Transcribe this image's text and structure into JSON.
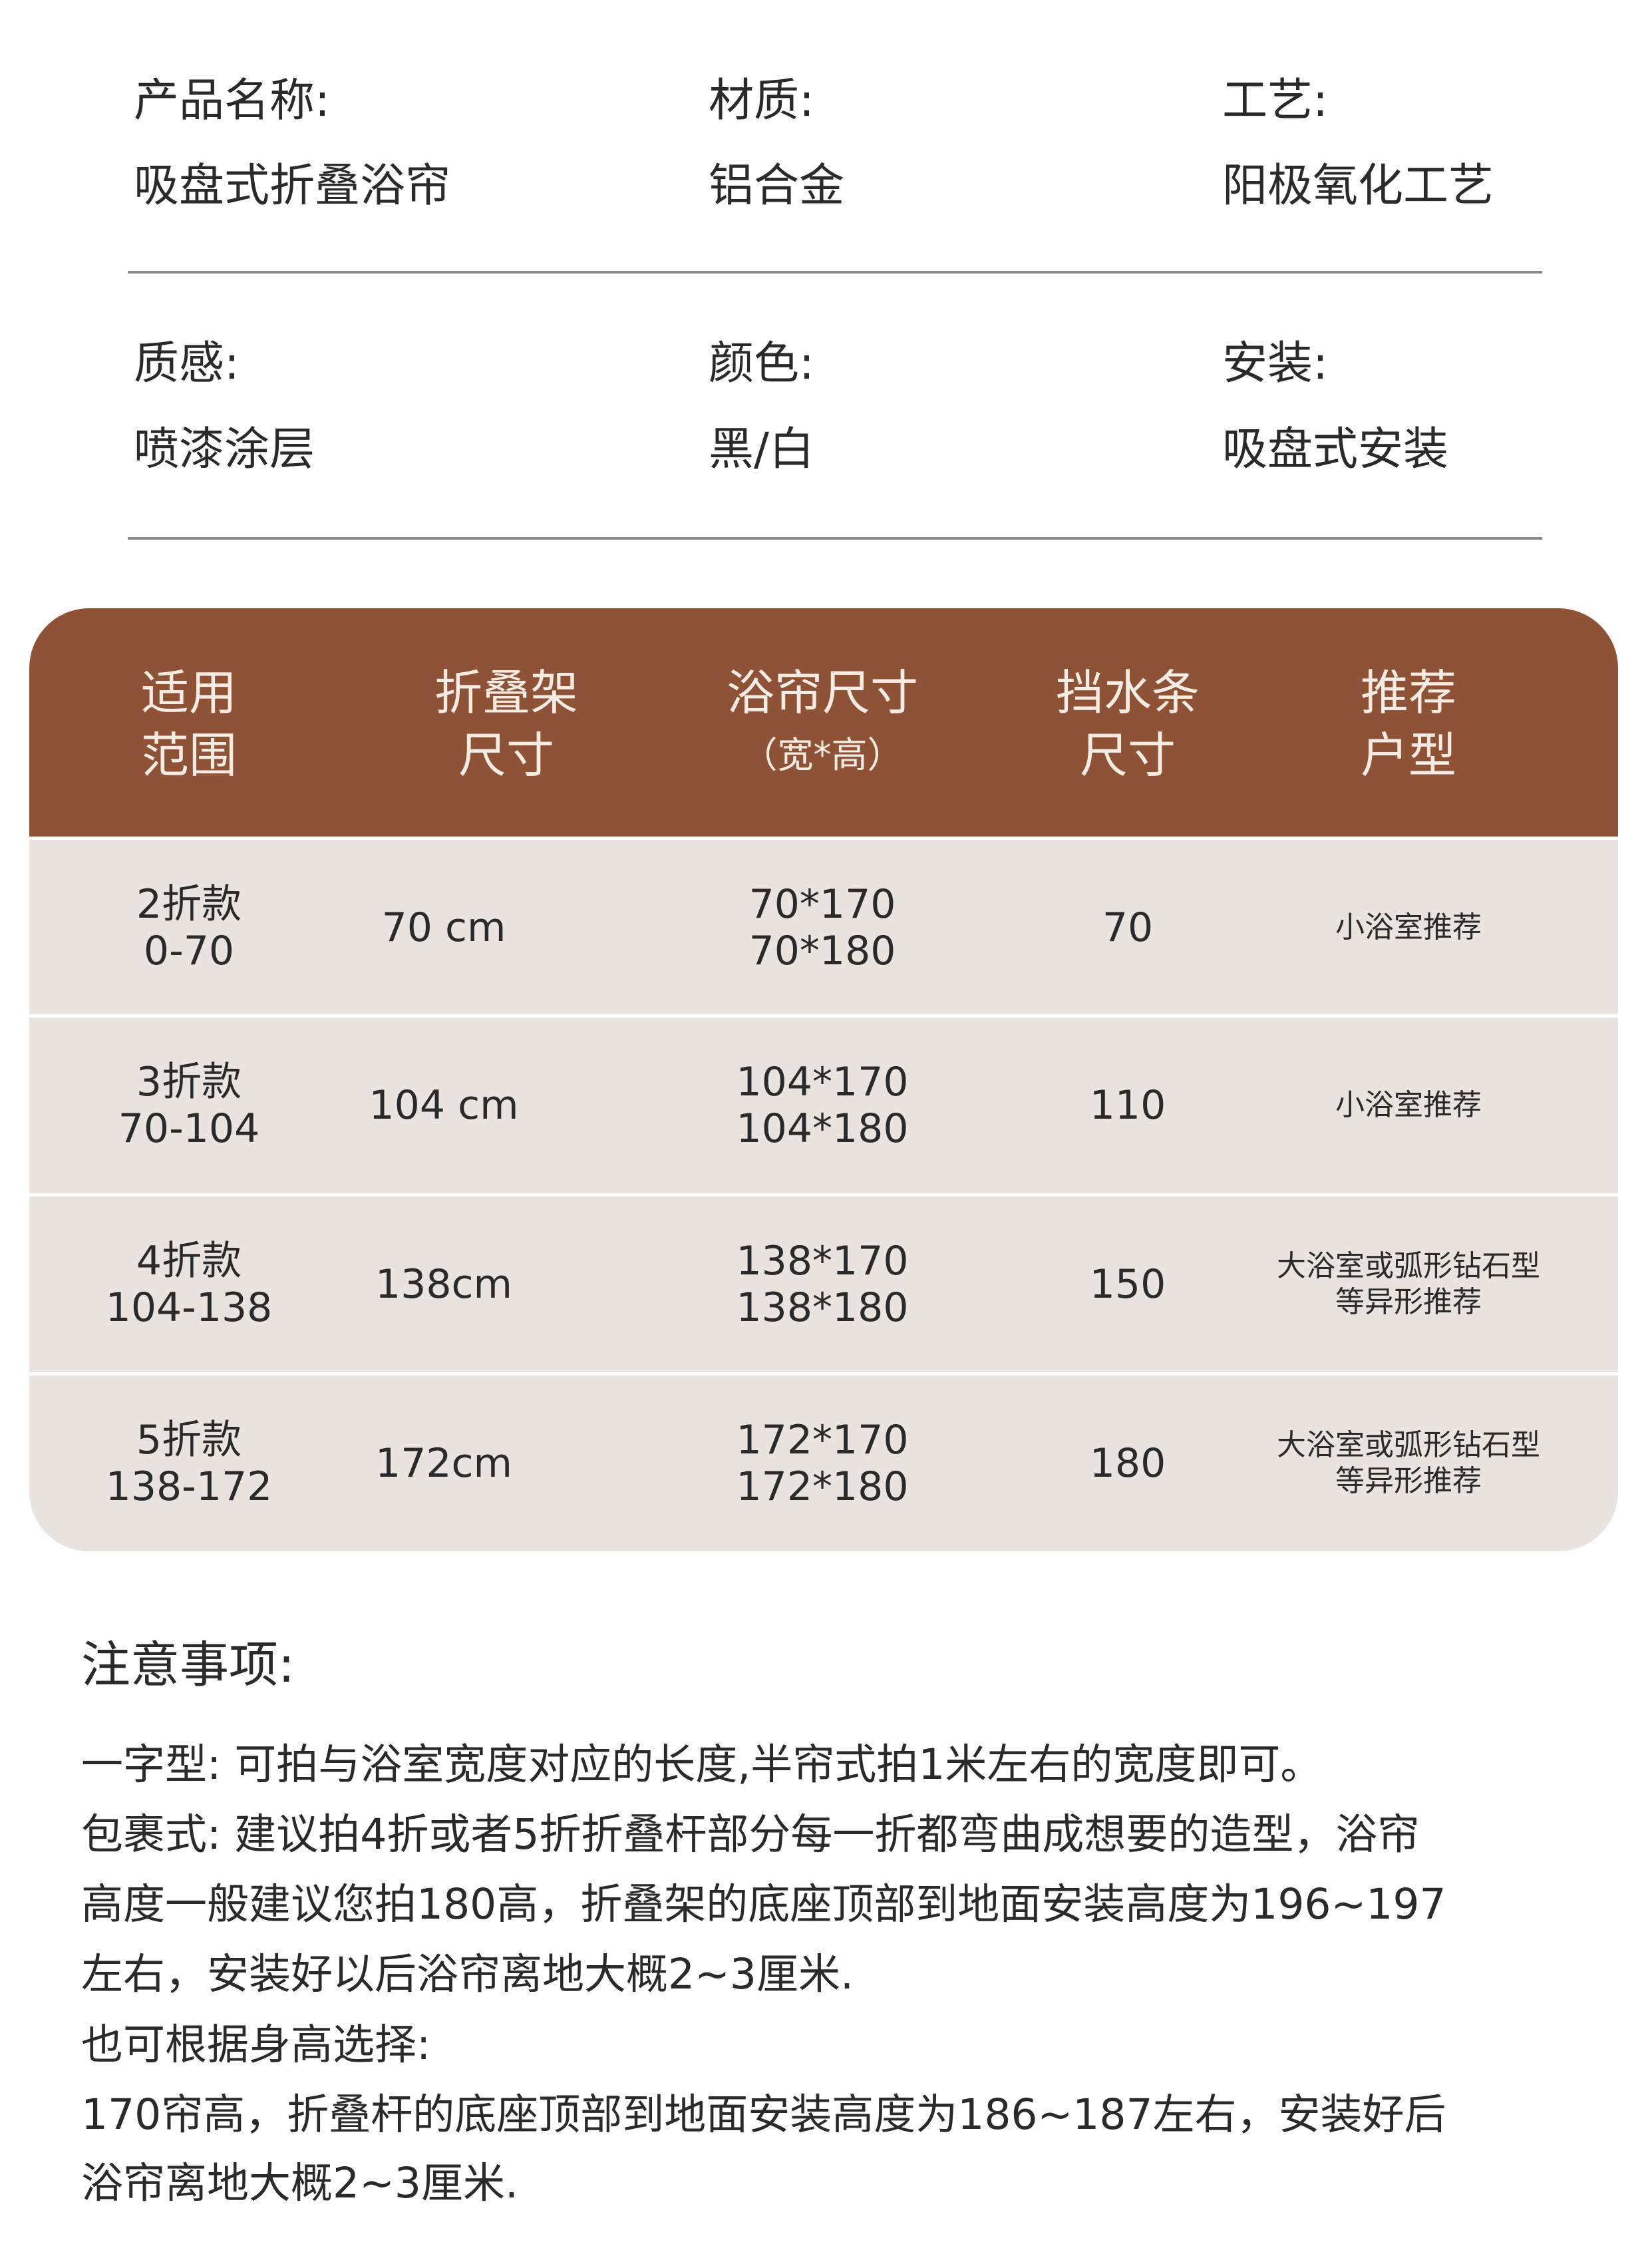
{
  "specs": [
    {
      "label": "产品名称:",
      "value": "吸盘式折叠浴帘"
    },
    {
      "label": "材质:",
      "value": "铝合金"
    },
    {
      "label": "工艺:",
      "value": "阳极氧化工艺"
    },
    {
      "label": "质感:",
      "value": "喷漆涂层"
    },
    {
      "label": "颜色:",
      "value": "黑/白"
    },
    {
      "label": "安装:",
      "value": "吸盘式安装"
    }
  ],
  "table": {
    "header_color": "#8e5336",
    "row_color": "#e9e4df",
    "headers": [
      {
        "line1": "适用",
        "line2": "范围"
      },
      {
        "line1": "折叠架",
        "line2": "尺寸"
      },
      {
        "line1": "浴帘尺寸",
        "line2": "（宽*高）"
      },
      {
        "line1": "挡水条",
        "line2": "尺寸"
      },
      {
        "line1": "推荐",
        "line2": "户型"
      }
    ],
    "rows": [
      {
        "model": "2折款",
        "range": "0-70",
        "frame": "70 cm",
        "size1": "70*170",
        "size2": "70*180",
        "strip": "70",
        "rec1": "小浴室推荐",
        "rec2": ""
      },
      {
        "model": "3折款",
        "range": "70-104",
        "frame": "104 cm",
        "size1": "104*170",
        "size2": "104*180",
        "strip": "110",
        "rec1": "小浴室推荐",
        "rec2": ""
      },
      {
        "model": "4折款",
        "range": "104-138",
        "frame": "138cm",
        "size1": "138*170",
        "size2": "138*180",
        "strip": "150",
        "rec1": "大浴室或弧形钻石型",
        "rec2": "等异形推荐"
      },
      {
        "model": "5折款",
        "range": "138-172",
        "frame": "172cm",
        "size1": "172*170",
        "size2": "172*180",
        "strip": "180",
        "rec1": "大浴室或弧形钻石型",
        "rec2": "等异形推荐"
      }
    ]
  },
  "notes": {
    "title": "注意事项:",
    "lines": [
      "一字型: 可拍与浴室宽度对应的长度,半帘式拍1米左右的宽度即可。",
      "包裹式: 建议拍4折或者5折折叠杆部分每一折都弯曲成想要的造型，浴帘",
      "高度一般建议您拍180高，折叠架的底座顶部到地面安装高度为196~197",
      "左右，安装好以后浴帘离地大概2~3厘米.",
      "也可根据身高选择:",
      "170帘高，折叠杆的底座顶部到地面安装高度为186~187左右，安装好后",
      "浴帘离地大概2~3厘米."
    ]
  }
}
